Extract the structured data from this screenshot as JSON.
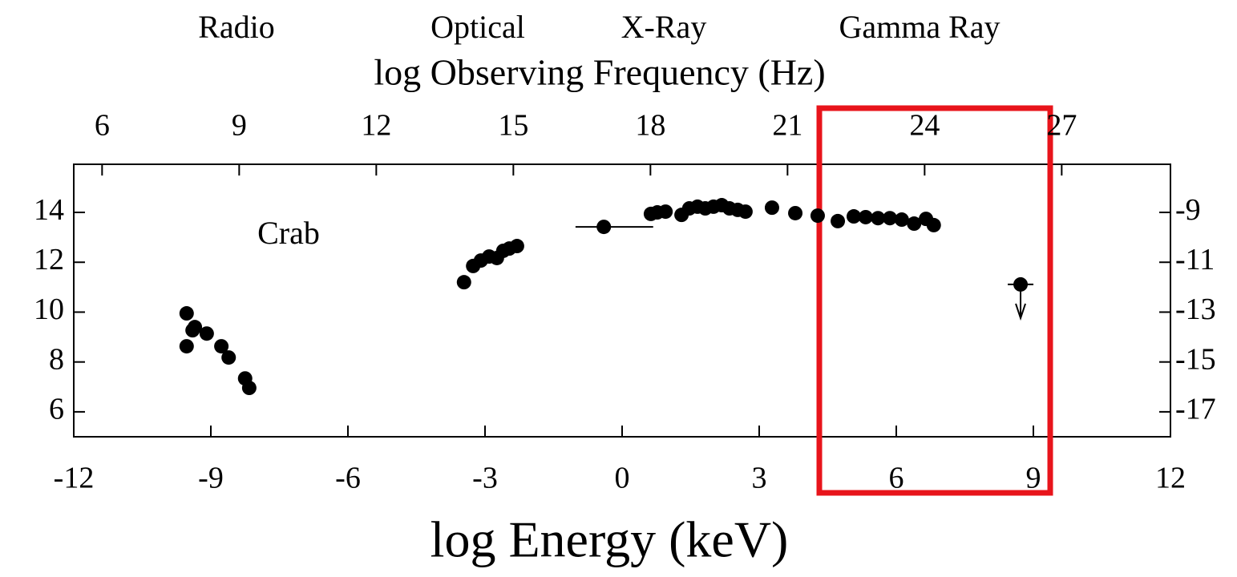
{
  "chart_data": {
    "type": "scatter",
    "x_title": "log Energy (keV)",
    "x2_title": "log Observing Frequency (Hz)",
    "annotations": [
      "Radio",
      "Optical",
      "X-Ray",
      "Gamma Ray"
    ],
    "label": "Crab",
    "color": "#000000",
    "xlim": [
      -12,
      12
    ],
    "xticks": [
      -12,
      -9,
      -6,
      -3,
      0,
      3,
      6,
      9,
      12
    ],
    "x2lim": [
      5.38,
      29.38
    ],
    "x2ticks": [
      6,
      9,
      12,
      15,
      18,
      21,
      24,
      27
    ],
    "ylim": [
      5,
      15.93
    ],
    "yticks": [
      6,
      8,
      10,
      12,
      14
    ],
    "y2lim": [
      -18,
      -7.07
    ],
    "y2ticks": [
      -17,
      -15,
      -13,
      -11,
      -9
    ],
    "x": [
      -9.53,
      -9.53,
      -9.4,
      -9.35,
      -9.09,
      -8.77,
      -8.61,
      -8.25,
      -8.16,
      -3.46,
      -3.26,
      -3.09,
      -2.91,
      -2.74,
      -2.6,
      -2.47,
      -2.3,
      -0.4,
      0.63,
      0.77,
      0.95,
      1.3,
      1.47,
      1.65,
      1.82,
      2.0,
      2.18,
      2.35,
      2.53,
      2.7,
      3.28,
      3.79,
      4.28,
      4.72,
      5.07,
      5.33,
      5.6,
      5.86,
      6.12,
      6.39,
      6.65,
      6.82
    ],
    "values": [
      9.95,
      8.63,
      9.27,
      9.4,
      9.14,
      8.63,
      8.18,
      7.34,
      6.96,
      11.2,
      11.85,
      12.07,
      12.23,
      12.17,
      12.46,
      12.55,
      12.65,
      13.42,
      13.94,
      14.0,
      14.03,
      13.9,
      14.16,
      14.23,
      14.16,
      14.23,
      14.29,
      14.16,
      14.1,
      14.03,
      14.19,
      13.97,
      13.87,
      13.65,
      13.84,
      13.81,
      13.77,
      13.77,
      13.71,
      13.55,
      13.74,
      13.49
    ],
    "error_bars": [
      {
        "x": [
          -1.02,
          0.68
        ],
        "y": 13.42
      }
    ],
    "upper_limits": {
      "x": [
        8.72
      ],
      "values": [
        11.11
      ]
    }
  }
}
